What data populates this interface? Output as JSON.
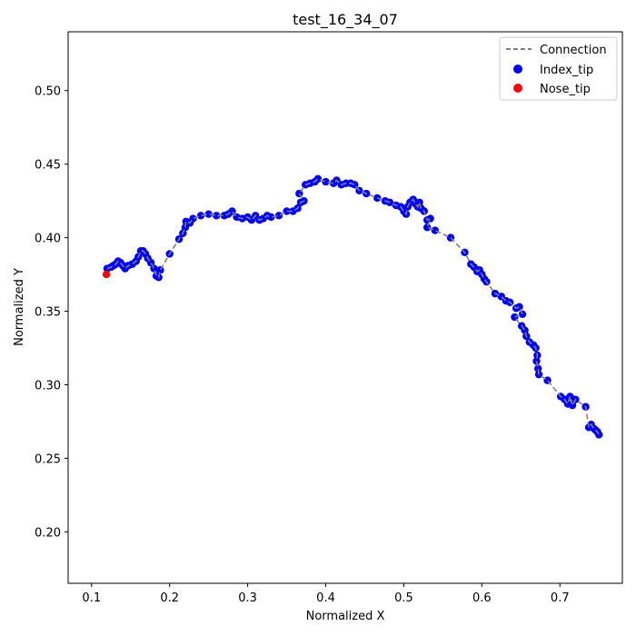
{
  "chart_data": {
    "type": "scatter",
    "title": "test_16_34_07",
    "xlabel": "Normalized X",
    "ylabel": "Normalized Y",
    "xlim": [
      0.07,
      0.78
    ],
    "ylim": [
      0.165,
      0.54
    ],
    "x_ticks": [
      0.1,
      0.2,
      0.3,
      0.4,
      0.5,
      0.6,
      0.7
    ],
    "y_ticks": [
      0.2,
      0.25,
      0.3,
      0.35,
      0.4,
      0.45,
      0.5
    ],
    "x_tick_labels": [
      "0.1",
      "0.2",
      "0.3",
      "0.4",
      "0.5",
      "0.6",
      "0.7"
    ],
    "y_tick_labels": [
      "0.20",
      "0.25",
      "0.30",
      "0.35",
      "0.40",
      "0.45",
      "0.50"
    ],
    "grid": false,
    "legend_position": "upper right",
    "legend": [
      "Connection",
      "Index_tip",
      "Nose_tip"
    ],
    "colors": {
      "connection": "#808080",
      "index_tip": "#0000ff",
      "nose_tip": "#ff0000"
    },
    "series": [
      {
        "name": "Index_tip",
        "points": [
          [
            0.12,
            0.379
          ],
          [
            0.125,
            0.38
          ],
          [
            0.128,
            0.381
          ],
          [
            0.131,
            0.382
          ],
          [
            0.134,
            0.384
          ],
          [
            0.137,
            0.383
          ],
          [
            0.14,
            0.381
          ],
          [
            0.143,
            0.379
          ],
          [
            0.147,
            0.381
          ],
          [
            0.152,
            0.382
          ],
          [
            0.157,
            0.384
          ],
          [
            0.16,
            0.387
          ],
          [
            0.163,
            0.391
          ],
          [
            0.166,
            0.391
          ],
          [
            0.169,
            0.389
          ],
          [
            0.172,
            0.386
          ],
          [
            0.176,
            0.383
          ],
          [
            0.18,
            0.379
          ],
          [
            0.183,
            0.374
          ],
          [
            0.186,
            0.373
          ],
          [
            0.188,
            0.378
          ],
          [
            0.2,
            0.389
          ],
          [
            0.212,
            0.399
          ],
          [
            0.217,
            0.403
          ],
          [
            0.22,
            0.407
          ],
          [
            0.221,
            0.411
          ],
          [
            0.226,
            0.41
          ],
          [
            0.23,
            0.413
          ],
          [
            0.24,
            0.415
          ],
          [
            0.25,
            0.416
          ],
          [
            0.26,
            0.415
          ],
          [
            0.27,
            0.415
          ],
          [
            0.275,
            0.416
          ],
          [
            0.28,
            0.418
          ],
          [
            0.286,
            0.414
          ],
          [
            0.293,
            0.413
          ],
          [
            0.3,
            0.414
          ],
          [
            0.305,
            0.412
          ],
          [
            0.31,
            0.415
          ],
          [
            0.315,
            0.412
          ],
          [
            0.32,
            0.413
          ],
          [
            0.325,
            0.415
          ],
          [
            0.33,
            0.414
          ],
          [
            0.34,
            0.415
          ],
          [
            0.35,
            0.418
          ],
          [
            0.358,
            0.418
          ],
          [
            0.364,
            0.42
          ],
          [
            0.368,
            0.424
          ],
          [
            0.372,
            0.425
          ],
          [
            0.366,
            0.43
          ],
          [
            0.374,
            0.436
          ],
          [
            0.38,
            0.437
          ],
          [
            0.386,
            0.438
          ],
          [
            0.39,
            0.44
          ],
          [
            0.4,
            0.438
          ],
          [
            0.41,
            0.437
          ],
          [
            0.414,
            0.439
          ],
          [
            0.42,
            0.436
          ],
          [
            0.426,
            0.437
          ],
          [
            0.432,
            0.437
          ],
          [
            0.437,
            0.436
          ],
          [
            0.443,
            0.432
          ],
          [
            0.452,
            0.43
          ],
          [
            0.466,
            0.427
          ],
          [
            0.476,
            0.425
          ],
          [
            0.482,
            0.424
          ],
          [
            0.49,
            0.422
          ],
          [
            0.496,
            0.421
          ],
          [
            0.5,
            0.418
          ],
          [
            0.503,
            0.416
          ],
          [
            0.505,
            0.421
          ],
          [
            0.508,
            0.424
          ],
          [
            0.512,
            0.426
          ],
          [
            0.515,
            0.423
          ],
          [
            0.518,
            0.421
          ],
          [
            0.52,
            0.424
          ],
          [
            0.522,
            0.42
          ],
          [
            0.526,
            0.418
          ],
          [
            0.53,
            0.412
          ],
          [
            0.534,
            0.413
          ],
          [
            0.53,
            0.407
          ],
          [
            0.54,
            0.405
          ],
          [
            0.56,
            0.4
          ],
          [
            0.578,
            0.39
          ],
          [
            0.586,
            0.382
          ],
          [
            0.59,
            0.38
          ],
          [
            0.594,
            0.377
          ],
          [
            0.597,
            0.378
          ],
          [
            0.6,
            0.375
          ],
          [
            0.603,
            0.372
          ],
          [
            0.606,
            0.37
          ],
          [
            0.617,
            0.362
          ],
          [
            0.625,
            0.36
          ],
          [
            0.631,
            0.357
          ],
          [
            0.636,
            0.356
          ],
          [
            0.644,
            0.352
          ],
          [
            0.648,
            0.353
          ],
          [
            0.652,
            0.348
          ],
          [
            0.642,
            0.346
          ],
          [
            0.651,
            0.34
          ],
          [
            0.655,
            0.337
          ],
          [
            0.657,
            0.333
          ],
          [
            0.661,
            0.329
          ],
          [
            0.666,
            0.327
          ],
          [
            0.669,
            0.325
          ],
          [
            0.671,
            0.32
          ],
          [
            0.67,
            0.316
          ],
          [
            0.672,
            0.311
          ],
          [
            0.673,
            0.307
          ],
          [
            0.684,
            0.303
          ],
          [
            0.701,
            0.292
          ],
          [
            0.706,
            0.29
          ],
          [
            0.71,
            0.287
          ],
          [
            0.713,
            0.292
          ],
          [
            0.716,
            0.286
          ],
          [
            0.72,
            0.29
          ],
          [
            0.733,
            0.285
          ],
          [
            0.737,
            0.271
          ],
          [
            0.74,
            0.273
          ],
          [
            0.744,
            0.27
          ],
          [
            0.746,
            0.269
          ],
          [
            0.748,
            0.268
          ],
          [
            0.75,
            0.266
          ]
        ]
      },
      {
        "name": "Nose_tip",
        "points": [
          [
            0.119,
            0.375
          ]
        ]
      }
    ]
  }
}
